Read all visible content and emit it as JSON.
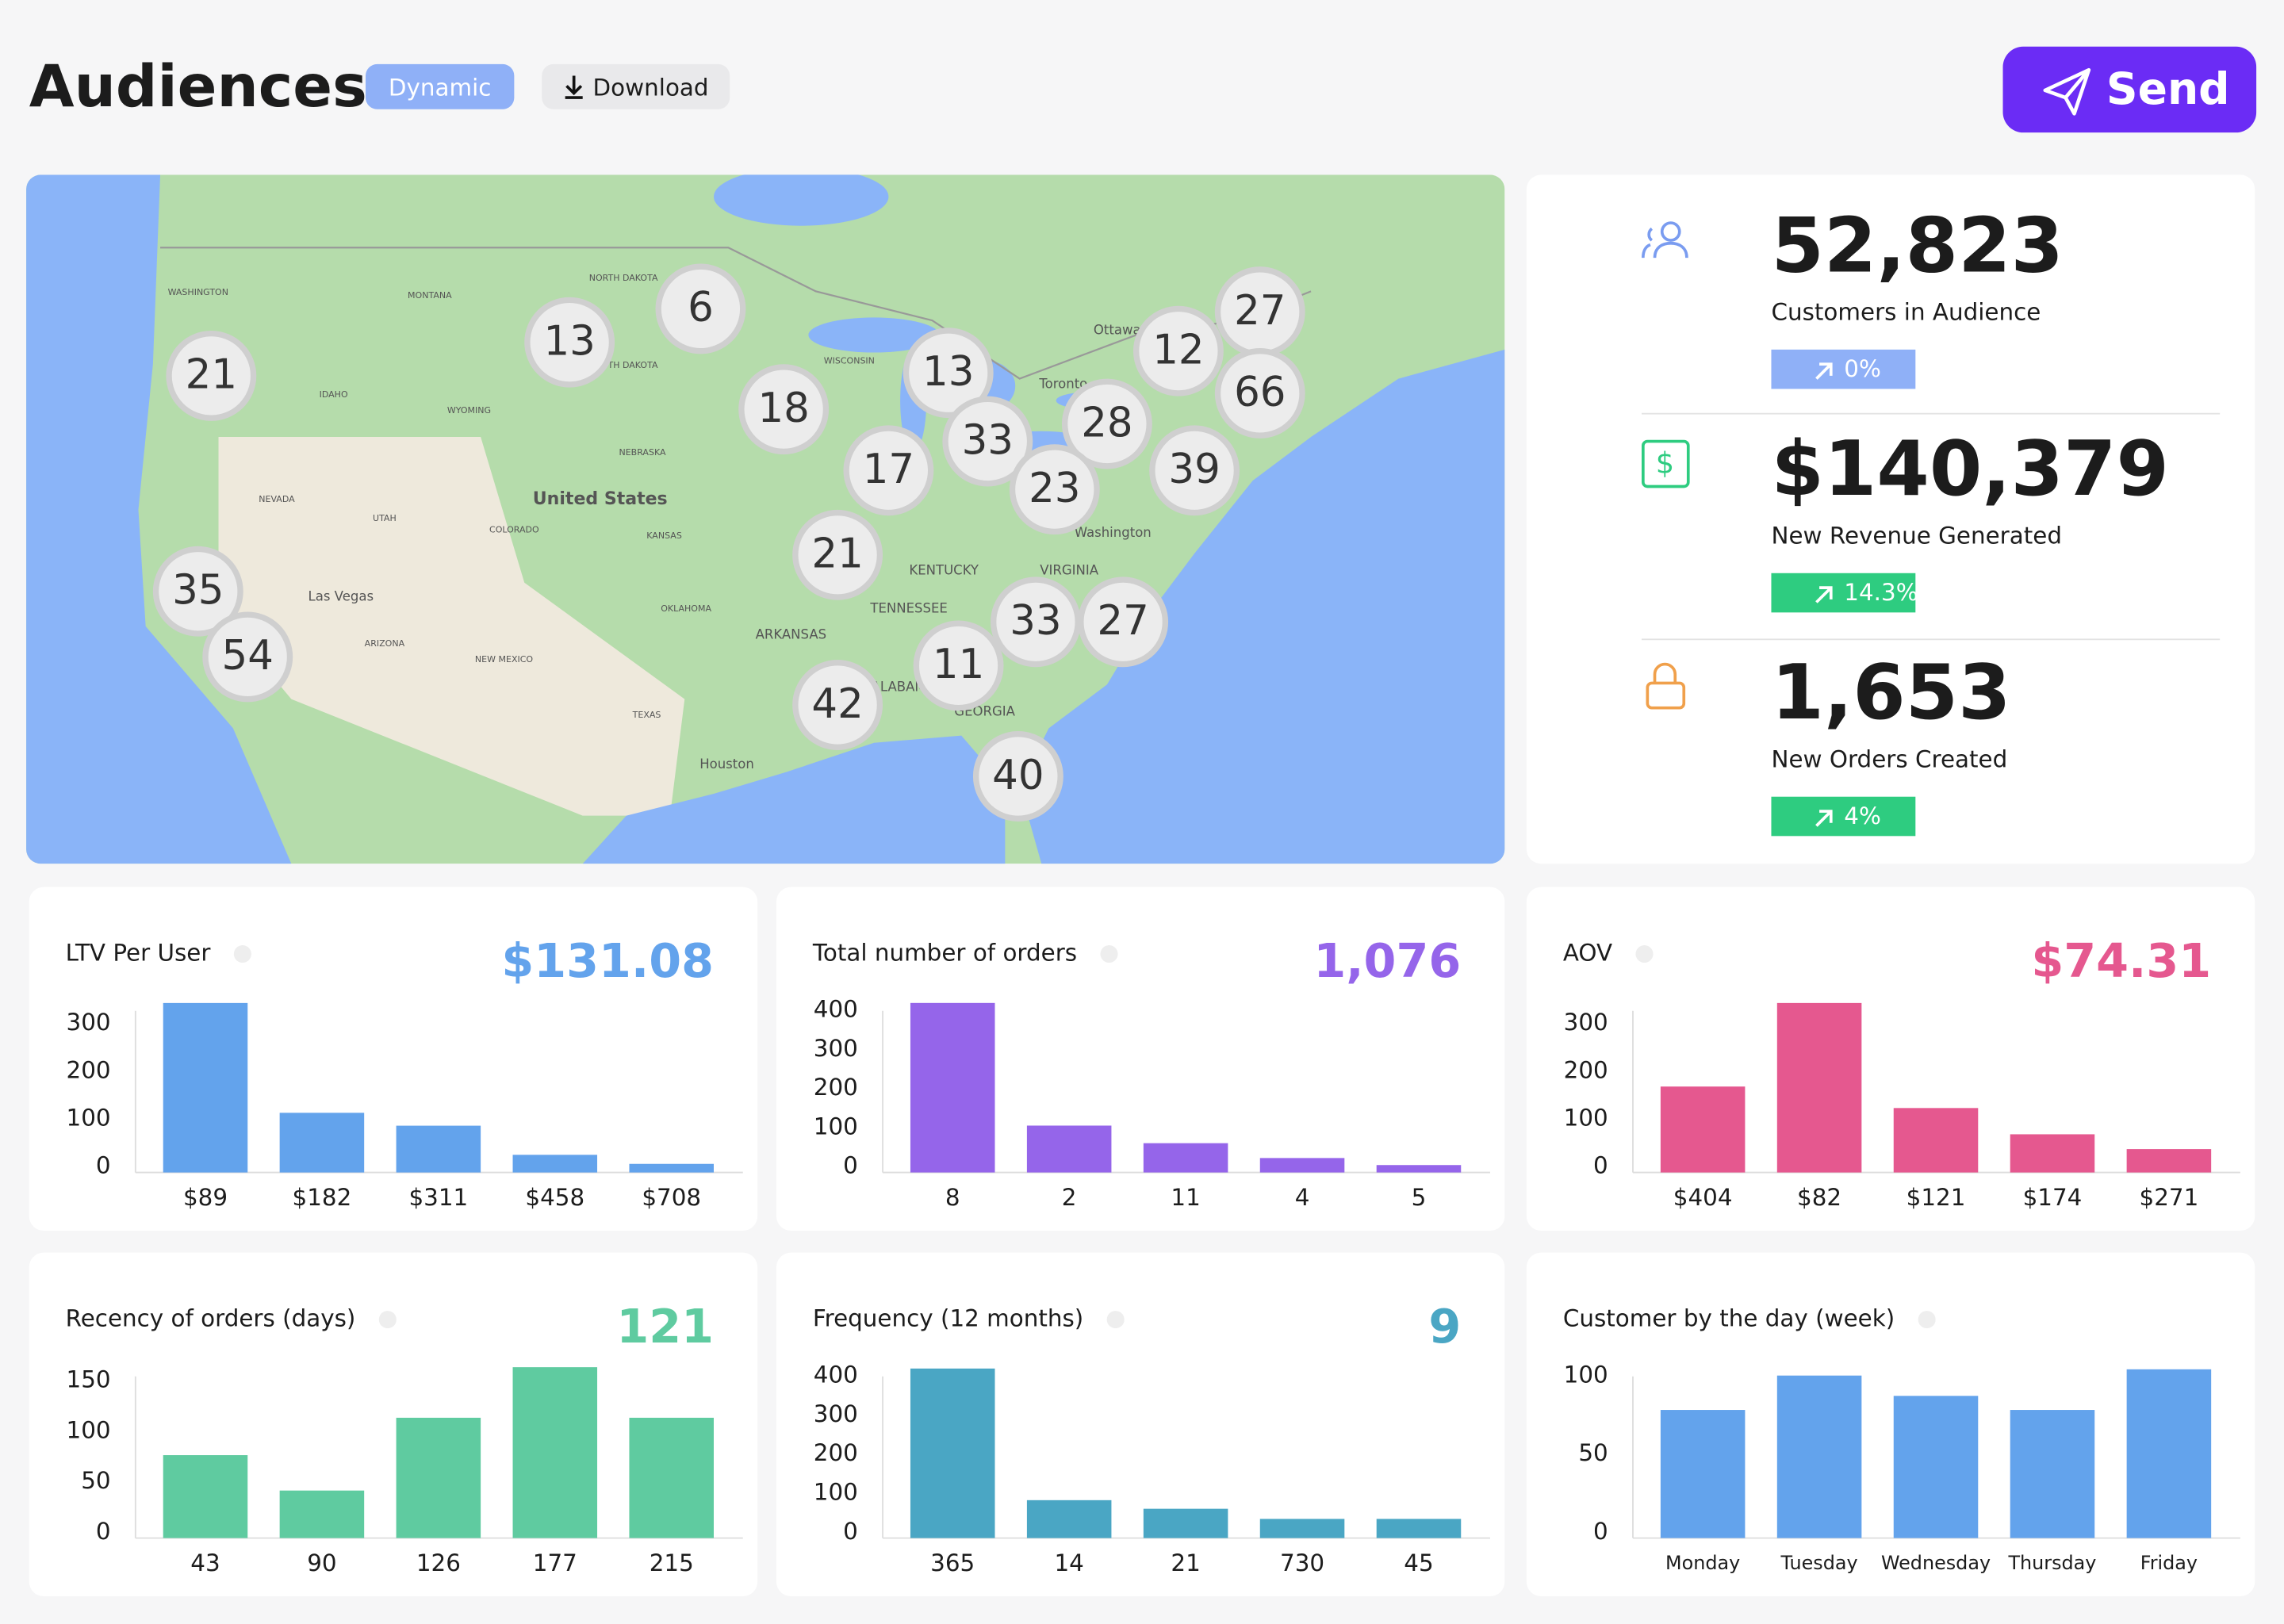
{
  "header": {
    "title": "Audiences",
    "tag": "Dynamic",
    "download": "Download",
    "send": "Send"
  },
  "map": {
    "labels": [
      "WASHINGTON",
      "MONTANA",
      "NORTH DAKOTA",
      "SOUTH DAKOTA",
      "IDAHO",
      "WYOMING",
      "NEVADA",
      "UTAH",
      "COLORADO",
      "NEBRASKA",
      "KANSAS",
      "OKLAHOMA",
      "ARIZONA",
      "NEW MEXICO",
      "TEXAS",
      "WISCONSIN",
      "United States",
      "Las Vegas",
      "Houston",
      "Toronto",
      "Ottawa",
      "Washington",
      "KENTUCKY",
      "TENNESSEE",
      "ARKANSAS",
      "VIRGINIA",
      "ALABAMA",
      "GEORGIA"
    ],
    "clusters": [
      21,
      13,
      6,
      18,
      13,
      33,
      17,
      28,
      23,
      12,
      27,
      66,
      39,
      21,
      35,
      54,
      33,
      27,
      11,
      42,
      40
    ]
  },
  "stats": [
    {
      "value": "52,823",
      "label": "Customers in Audience",
      "change": "0%"
    },
    {
      "value": "$140,379",
      "label": "New Revenue Generated",
      "change": "14.3%"
    },
    {
      "value": "1,653",
      "label": "New Orders Created",
      "change": "4%"
    }
  ],
  "chart_data": [
    {
      "type": "bar",
      "title": "LTV Per User",
      "headline": "$131.08",
      "categories": [
        "$89",
        "$182",
        "$311",
        "$458",
        "$708"
      ],
      "values": [
        355,
        125,
        98,
        37,
        18
      ],
      "color": "#63a3ec",
      "ylim": [
        0,
        360
      ],
      "yticks": [
        0,
        100,
        200,
        300
      ]
    },
    {
      "type": "bar",
      "title": "Total number of orders",
      "headline": "1,076",
      "categories": [
        "8",
        "2",
        "11",
        "4",
        "5"
      ],
      "values": [
        434,
        120,
        75,
        37,
        19
      ],
      "color": "#9565ea",
      "ylim": [
        0,
        440
      ],
      "yticks": [
        0,
        100,
        200,
        300,
        400
      ]
    },
    {
      "type": "bar",
      "title": "AOV",
      "headline": "$74.31",
      "categories": [
        "$404",
        "$82",
        "$121",
        "$174",
        "$271"
      ],
      "values": [
        180,
        355,
        135,
        80,
        49
      ],
      "color": "#e5588f",
      "ylim": [
        0,
        360
      ],
      "yticks": [
        0,
        100,
        200,
        300
      ]
    },
    {
      "type": "bar",
      "title": "Recency of orders (days)",
      "headline": "121",
      "categories": [
        "43",
        "90",
        "126",
        "177",
        "215"
      ],
      "values": [
        82,
        47,
        119,
        169,
        119
      ],
      "color": "#5fcba0",
      "ylim": [
        0,
        170
      ],
      "yticks": [
        0,
        50,
        100,
        150
      ]
    },
    {
      "type": "bar",
      "title": "Frequency (12 months)",
      "headline": "9",
      "categories": [
        "365",
        "14",
        "21",
        "730",
        "45"
      ],
      "values": [
        434,
        97,
        75,
        49,
        49
      ],
      "color": "#4aa6c4",
      "ylim": [
        0,
        440
      ],
      "yticks": [
        0,
        100,
        200,
        300,
        400
      ]
    },
    {
      "type": "bar",
      "title": "Customer by the day (week)",
      "headline": "",
      "categories": [
        "Monday",
        "Tuesday",
        "Wednesday",
        "Thursday",
        "Friday"
      ],
      "values": [
        82,
        104,
        91,
        82,
        108
      ],
      "color": "#63a3ec",
      "ylim": [
        0,
        110
      ],
      "yticks": [
        0,
        50,
        100
      ]
    }
  ]
}
